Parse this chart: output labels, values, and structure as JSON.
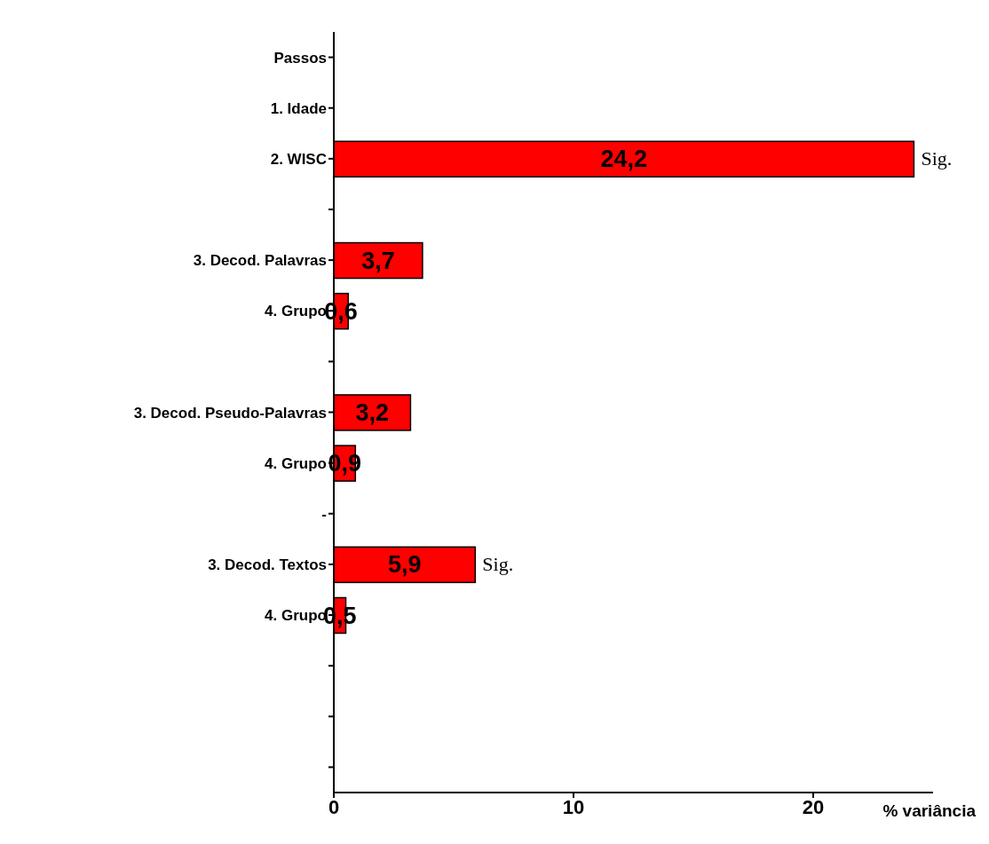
{
  "chart_data": {
    "type": "bar",
    "orientation": "horizontal",
    "categories": [
      "Passos",
      "1. Idade",
      "2. WISC",
      null,
      "3. Decod. Palavras",
      "4. Grupo",
      null,
      "3. Decod. Pseudo-Palavras",
      "4. Grupo",
      "-",
      "3. Decod. Textos",
      "4. Grupo",
      null,
      null,
      null
    ],
    "values": [
      null,
      null,
      24.2,
      null,
      3.7,
      0.6,
      null,
      3.2,
      0.9,
      null,
      5.9,
      0.5,
      null,
      null,
      null
    ],
    "value_labels": [
      null,
      null,
      "24,2",
      null,
      "3,7",
      "0,6",
      null,
      "3,2",
      "0,9",
      null,
      "5,9",
      "0,5",
      null,
      null,
      null
    ],
    "color": "#ff0000",
    "xlabel": "% variância",
    "xlim": [
      0,
      25
    ],
    "xticks": [
      0,
      10,
      20
    ],
    "grid": false,
    "annotations": [
      {
        "text": "Sig.",
        "x": 24.2,
        "y": "2. WISC"
      },
      {
        "text": "Sig.",
        "x": 5.9,
        "y": "3. Decod. Textos"
      }
    ]
  }
}
